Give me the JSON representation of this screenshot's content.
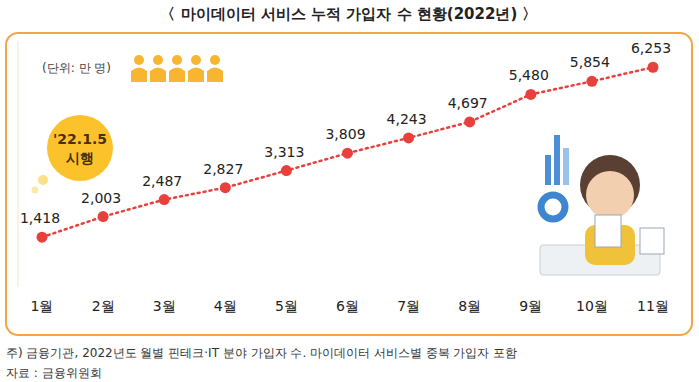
{
  "chart_data": {
    "type": "line",
    "title": "〈 마이데이터 서비스 누적 가입자 수 현황(2022년) 〉",
    "unit": "(단위: 만 명)",
    "annotation": [
      "'22.1.5",
      "시행"
    ],
    "categories": [
      "1월",
      "2월",
      "3월",
      "4월",
      "5월",
      "6월",
      "7월",
      "8월",
      "9월",
      "10월",
      "11월"
    ],
    "values": [
      1418,
      2003,
      2487,
      2827,
      3313,
      3809,
      4243,
      4697,
      5480,
      5854,
      6253
    ],
    "value_labels": [
      "1,418",
      "2,003",
      "2,487",
      "2,827",
      "3,313",
      "3,809",
      "4,243",
      "4,697",
      "5,480",
      "5,854",
      "6,253"
    ],
    "color": "#e8413c",
    "marker": "circle",
    "line_style": "dotted",
    "data_labels": true,
    "tick_labels": "x",
    "grid": false,
    "ylim": [
      0,
      7000
    ],
    "note": "주) 금융기관, 2022년도 월별 핀테크·IT 분야 가입자 수. 마이데이터 서비스별 중복 가입자 포함",
    "source": "자료 : 금융위원회"
  }
}
